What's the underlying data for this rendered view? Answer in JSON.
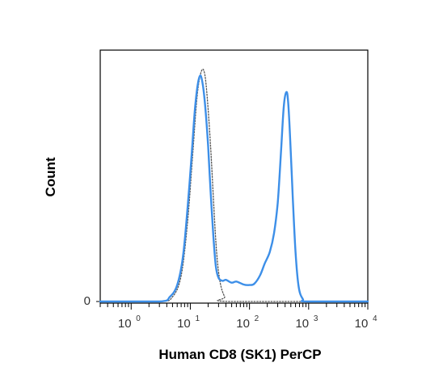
{
  "chart_data": {
    "type": "line",
    "title": "",
    "xlabel": "Human CD8 (SK1) PerCP",
    "ylabel": "Count",
    "x_scale": "log",
    "xlim": [
      0.3,
      10000
    ],
    "ylim": [
      0,
      1.0
    ],
    "y_tick_labels": [
      {
        "value": 0,
        "label": "0"
      }
    ],
    "x_tick_labels": [
      {
        "value": 1,
        "base": "10",
        "exp": "0"
      },
      {
        "value": 10,
        "base": "10",
        "exp": "1"
      },
      {
        "value": 100,
        "base": "10",
        "exp": "2"
      },
      {
        "value": 1000,
        "base": "10",
        "exp": "3"
      },
      {
        "value": 10000,
        "base": "10",
        "exp": "4"
      }
    ],
    "grid": false,
    "legend": "none",
    "series": [
      {
        "style": "solid",
        "color": "#3d8fe8",
        "points": [
          [
            0.3,
            0
          ],
          [
            3.0,
            0
          ],
          [
            4.5,
            0.02
          ],
          [
            6.0,
            0.07
          ],
          [
            7.5,
            0.19
          ],
          [
            9.0,
            0.4
          ],
          [
            10.5,
            0.62
          ],
          [
            12.0,
            0.82
          ],
          [
            13.5,
            0.93
          ],
          [
            15.0,
            0.96
          ],
          [
            16.5,
            0.91
          ],
          [
            18.0,
            0.82
          ],
          [
            20.0,
            0.66
          ],
          [
            22.0,
            0.47
          ],
          [
            24.5,
            0.28
          ],
          [
            27.0,
            0.15
          ],
          [
            30.0,
            0.1
          ],
          [
            35.0,
            0.088
          ],
          [
            40.0,
            0.092
          ],
          [
            50.0,
            0.08
          ],
          [
            60.0,
            0.085
          ],
          [
            80.0,
            0.072
          ],
          [
            100,
            0.07
          ],
          [
            120,
            0.075
          ],
          [
            150,
            0.11
          ],
          [
            180,
            0.16
          ],
          [
            220,
            0.21
          ],
          [
            260,
            0.29
          ],
          [
            300,
            0.42
          ],
          [
            340,
            0.63
          ],
          [
            380,
            0.83
          ],
          [
            420,
            0.89
          ],
          [
            450,
            0.85
          ],
          [
            490,
            0.68
          ],
          [
            540,
            0.44
          ],
          [
            600,
            0.21
          ],
          [
            680,
            0.06
          ],
          [
            800,
            0.01
          ],
          [
            950,
            0
          ],
          [
            10000,
            0
          ]
        ]
      },
      {
        "style": "dotted",
        "color": "#555555",
        "points": [
          [
            0.3,
            0
          ],
          [
            3.0,
            0
          ],
          [
            5.0,
            0.02
          ],
          [
            7.0,
            0.11
          ],
          [
            9.0,
            0.34
          ],
          [
            11.0,
            0.63
          ],
          [
            13.0,
            0.87
          ],
          [
            15.0,
            0.97
          ],
          [
            17.0,
            0.98
          ],
          [
            19.0,
            0.89
          ],
          [
            22.0,
            0.66
          ],
          [
            25.0,
            0.4
          ],
          [
            28.0,
            0.2
          ],
          [
            32.0,
            0.08
          ],
          [
            38.0,
            0.02
          ],
          [
            45.0,
            0
          ],
          [
            10000,
            0
          ]
        ]
      }
    ]
  }
}
